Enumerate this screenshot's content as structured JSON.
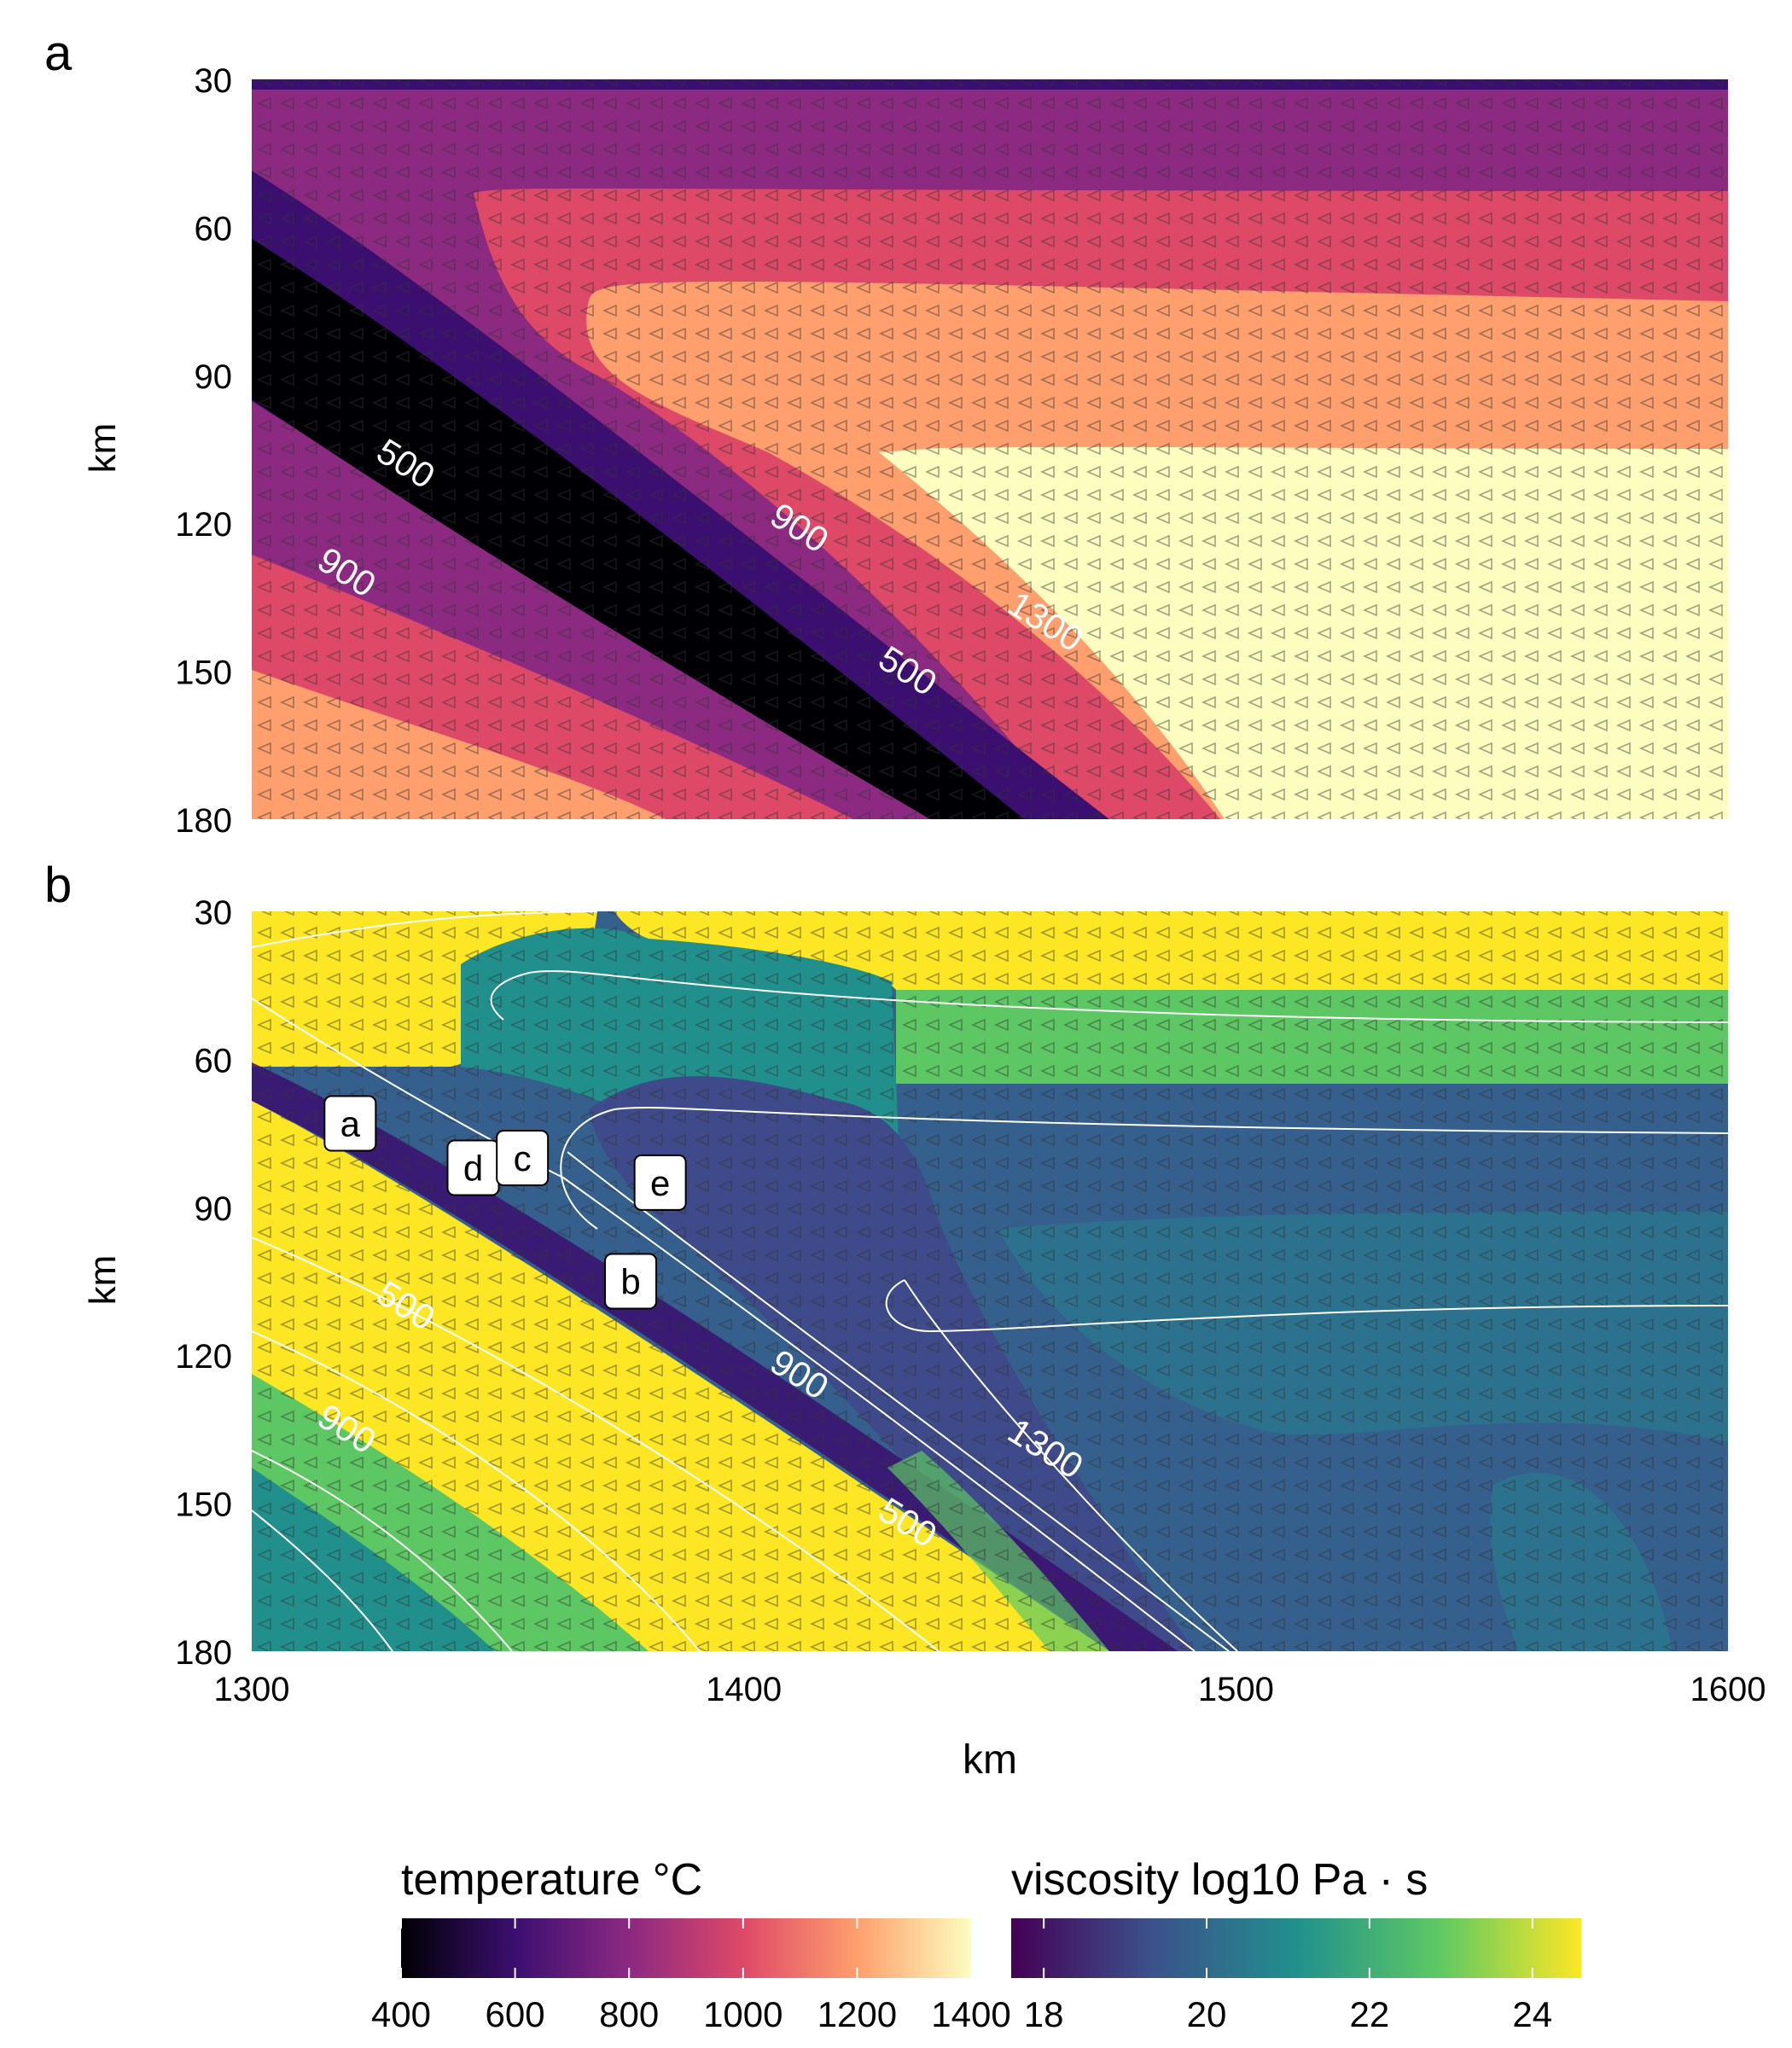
{
  "chart_data": [
    {
      "panel": "a",
      "type": "heatmap",
      "field": "temperature",
      "xlabel": "",
      "ylabel": "km",
      "xlim": [
        1300,
        1600
      ],
      "ylim": [
        30,
        180
      ],
      "y_reversed": true,
      "yticks": [
        30,
        60,
        90,
        120,
        150,
        180
      ],
      "contour_labels": [
        {
          "text": "500",
          "x": 1330,
          "y": 110
        },
        {
          "text": "900",
          "x": 1318,
          "y": 132
        },
        {
          "text": "900",
          "x": 1410,
          "y": 123
        },
        {
          "text": "500",
          "x": 1432,
          "y": 152
        },
        {
          "text": "1300",
          "x": 1460,
          "y": 142
        }
      ]
    },
    {
      "panel": "b",
      "type": "heatmap",
      "field": "viscosity",
      "xlabel": "km",
      "ylabel": "km",
      "xlim": [
        1300,
        1600
      ],
      "ylim": [
        30,
        180
      ],
      "y_reversed": true,
      "xticks": [
        1300,
        1400,
        1500,
        1600
      ],
      "yticks": [
        30,
        60,
        90,
        120,
        150,
        180
      ],
      "contour_labels": [
        {
          "text": "500",
          "x": 1330,
          "y": 112
        },
        {
          "text": "900",
          "x": 1318,
          "y": 137
        },
        {
          "text": "900",
          "x": 1410,
          "y": 126
        },
        {
          "text": "500",
          "x": 1432,
          "y": 156
        },
        {
          "text": "1300",
          "x": 1460,
          "y": 141
        }
      ],
      "point_labels": [
        {
          "text": "a",
          "x": 1320,
          "y": 73
        },
        {
          "text": "d",
          "x": 1345,
          "y": 82
        },
        {
          "text": "c",
          "x": 1355,
          "y": 80
        },
        {
          "text": "e",
          "x": 1383,
          "y": 85
        },
        {
          "text": "b",
          "x": 1377,
          "y": 105
        }
      ]
    }
  ],
  "legend": {
    "temperature": {
      "title": "temperature °C",
      "range": [
        400,
        1400
      ],
      "ticks": [
        "400",
        "600",
        "800",
        "1000",
        "1200",
        "1400"
      ],
      "colors": [
        "#000004",
        "#3b0f70",
        "#8c2981",
        "#de4968",
        "#fe9f6d",
        "#fcfdbf"
      ]
    },
    "viscosity": {
      "title": "viscosity log10 Pa · s",
      "range": [
        17.6,
        24.6
      ],
      "ticks": [
        "18",
        "20",
        "22",
        "24"
      ],
      "colors": [
        "#440154",
        "#3b528b",
        "#21908d",
        "#5dc863",
        "#fde725"
      ]
    }
  },
  "panel_labels": [
    "a",
    "b"
  ]
}
